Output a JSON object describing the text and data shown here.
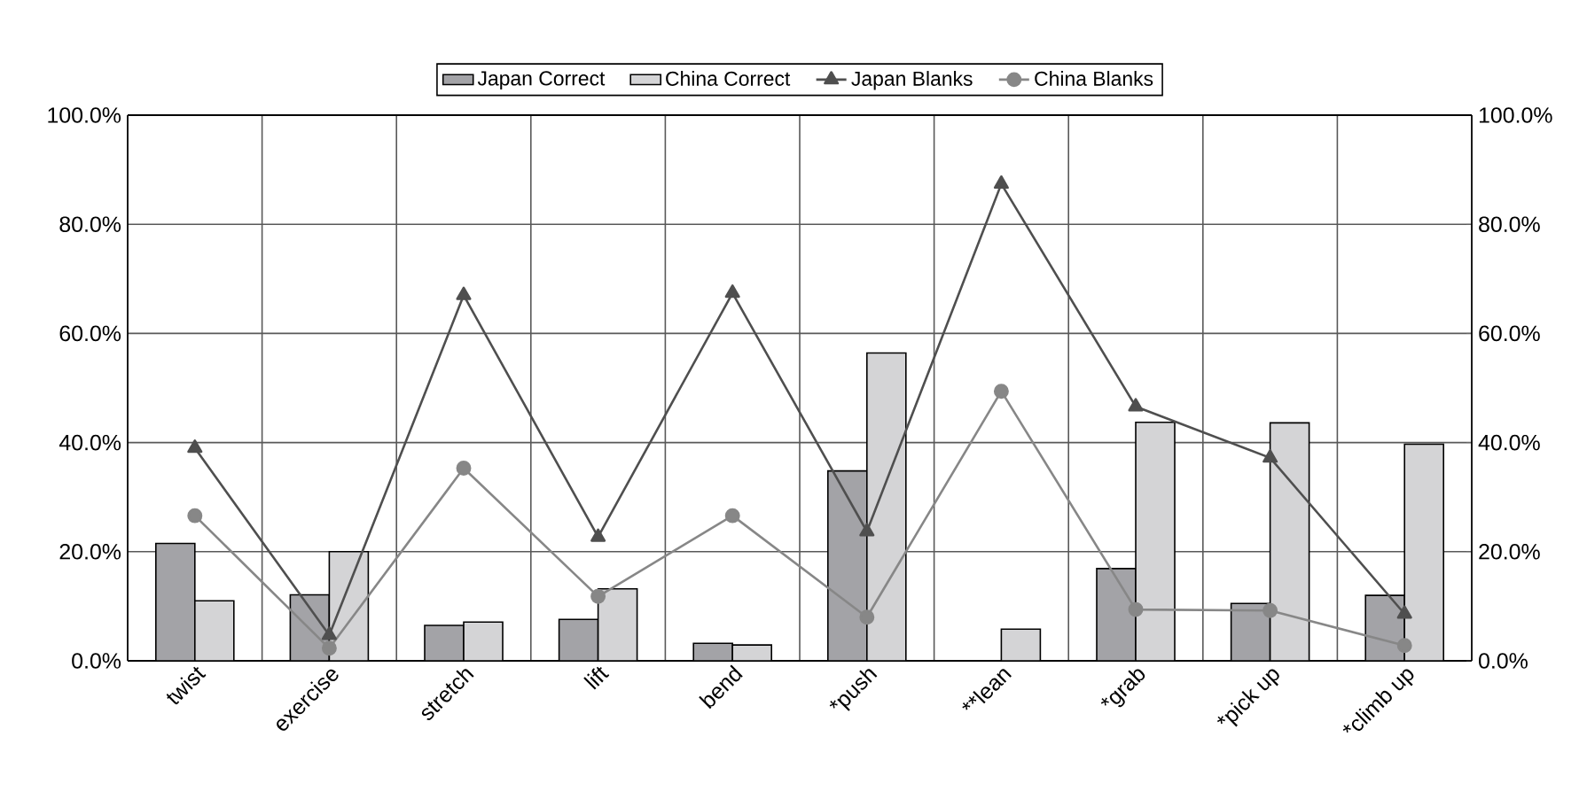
{
  "chart_data": {
    "type": "bar",
    "categories": [
      "twist",
      "exercise",
      "stretch",
      "lift",
      "bend",
      "*push",
      "**lean",
      "*grab",
      "*pick up",
      "*climb up"
    ],
    "series": [
      {
        "name": "Japan Correct",
        "color": "#a3a3a7",
        "values": [
          21.5,
          12.1,
          6.5,
          7.6,
          3.2,
          34.8,
          null,
          16.9,
          10.5,
          12
        ]
      },
      {
        "name": "China Correct",
        "color": "#d4d4d6",
        "values": [
          11,
          20,
          7.1,
          13.2,
          2.9,
          56.4,
          5.8,
          43.7,
          43.6,
          39.7
        ]
      },
      {
        "name": "Japan Blanks",
        "type": "line",
        "marker": "triangle",
        "color": "#4f4f4f",
        "values": [
          39,
          4.7,
          67,
          22.7,
          67.4,
          23.7,
          87.4,
          46.6,
          37.2,
          8.6
        ]
      },
      {
        "name": "China Blanks",
        "type": "line",
        "marker": "circle",
        "color": "#878787",
        "values": [
          26.6,
          2.3,
          35.3,
          11.8,
          26.6,
          8,
          49.4,
          9.4,
          9.2,
          2.8
        ]
      }
    ],
    "ylim": [
      0,
      100
    ],
    "yticks": [
      {
        "value": 0,
        "label": "0.0%"
      },
      {
        "value": 20,
        "label": "20.0%"
      },
      {
        "value": 40,
        "label": "40.0%"
      },
      {
        "value": 60,
        "label": "60.0%"
      },
      {
        "value": 80,
        "label": "80.0%"
      },
      {
        "value": 100,
        "label": "100.0%"
      }
    ],
    "y2lim": [
      0,
      100
    ],
    "y2ticks": [
      {
        "value": 0,
        "label": "0.0%"
      },
      {
        "value": 20,
        "label": "20.0%"
      },
      {
        "value": 40,
        "label": "40.0%"
      },
      {
        "value": 60,
        "label": "60.0%"
      },
      {
        "value": 80,
        "label": "80.0%"
      },
      {
        "value": 100,
        "label": "100.0%"
      }
    ],
    "grid": true,
    "legend": "top"
  }
}
